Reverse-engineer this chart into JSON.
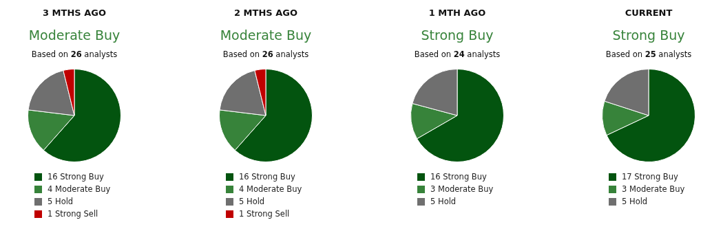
{
  "chart_data": [
    {
      "type": "pie",
      "title": "3 MTHS AGO",
      "subtitle": "Moderate Buy",
      "annotations": [
        "Based on 26 analysts"
      ],
      "categories": [
        "Strong Buy",
        "Moderate Buy",
        "Hold",
        "Strong Sell"
      ],
      "values": [
        16,
        4,
        5,
        1
      ],
      "colors": [
        "#03540f",
        "#37833a",
        "#6f6f6f",
        "#c00000"
      ],
      "legend": "bottom",
      "data_labels": true
    },
    {
      "type": "pie",
      "title": "2 MTHS AGO",
      "subtitle": "Moderate Buy",
      "annotations": [
        "Based on 26 analysts"
      ],
      "categories": [
        "Strong Buy",
        "Moderate Buy",
        "Hold",
        "Strong Sell"
      ],
      "values": [
        16,
        4,
        5,
        1
      ],
      "colors": [
        "#03540f",
        "#37833a",
        "#6f6f6f",
        "#c00000"
      ],
      "legend": "bottom",
      "data_labels": true
    },
    {
      "type": "pie",
      "title": "1 MTH AGO",
      "subtitle": "Strong Buy",
      "annotations": [
        "Based on 24 analysts"
      ],
      "categories": [
        "Strong Buy",
        "Moderate Buy",
        "Hold"
      ],
      "values": [
        16,
        3,
        5
      ],
      "colors": [
        "#03540f",
        "#37833a",
        "#6f6f6f"
      ],
      "legend": "bottom",
      "data_labels": true
    },
    {
      "type": "pie",
      "title": "CURRENT",
      "subtitle": "Strong Buy",
      "annotations": [
        "Based on 25 analysts"
      ],
      "categories": [
        "Strong Buy",
        "Moderate Buy",
        "Hold"
      ],
      "values": [
        17,
        3,
        5
      ],
      "colors": [
        "#03540f",
        "#37833a",
        "#6f6f6f"
      ],
      "legend": "bottom",
      "data_labels": true
    }
  ]
}
